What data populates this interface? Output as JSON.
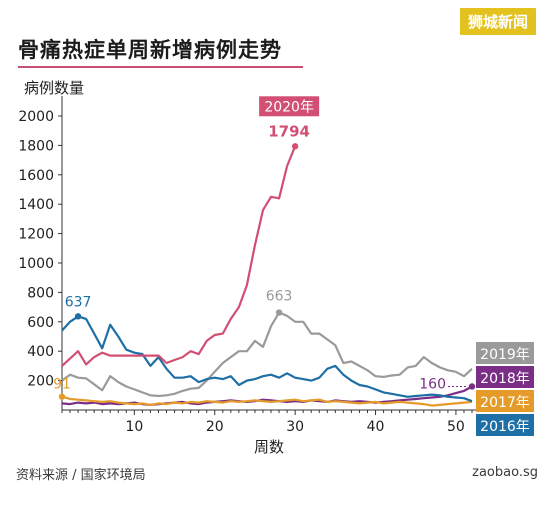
{
  "header": {
    "logo_text": "狮城新闻",
    "title": "骨痛热症单周新增病例走势"
  },
  "footer": {
    "source": "资料来源 / 国家环境局",
    "site": "zaobao.sg"
  },
  "chart_data": {
    "type": "line",
    "xlabel": "周数",
    "ylabel": "病例数量",
    "xlim": [
      1,
      52
    ],
    "ylim": [
      0,
      2000
    ],
    "x_ticks": [
      10,
      20,
      30,
      40,
      50
    ],
    "y_ticks": [
      200,
      400,
      600,
      800,
      1000,
      1200,
      1400,
      1600,
      1800,
      2000
    ],
    "grid": false,
    "legend_position": "right",
    "series": [
      {
        "name": "2019年",
        "color": "#9a9a9a",
        "x": [
          1,
          2,
          3,
          4,
          5,
          6,
          7,
          8,
          9,
          10,
          11,
          12,
          13,
          14,
          15,
          16,
          17,
          18,
          19,
          20,
          21,
          22,
          23,
          24,
          25,
          26,
          27,
          28,
          29,
          30,
          31,
          32,
          33,
          34,
          35,
          36,
          37,
          38,
          39,
          40,
          41,
          42,
          43,
          44,
          45,
          46,
          47,
          48,
          49,
          50,
          51,
          52
        ],
        "y": [
          200,
          240,
          220,
          215,
          175,
          135,
          230,
          190,
          160,
          140,
          120,
          100,
          95,
          100,
          110,
          130,
          145,
          150,
          200,
          260,
          320,
          360,
          400,
          400,
          470,
          430,
          570,
          663,
          640,
          600,
          600,
          520,
          520,
          480,
          440,
          320,
          330,
          300,
          270,
          230,
          225,
          235,
          240,
          290,
          300,
          360,
          320,
          290,
          270,
          260,
          230,
          280
        ],
        "annotation": {
          "x": 28,
          "y": 663,
          "label": "663"
        }
      },
      {
        "name": "2018年",
        "color": "#7a2e86",
        "x": [
          1,
          2,
          3,
          4,
          5,
          6,
          7,
          8,
          9,
          10,
          11,
          12,
          13,
          14,
          15,
          16,
          17,
          18,
          19,
          20,
          21,
          22,
          23,
          24,
          25,
          26,
          27,
          28,
          29,
          30,
          31,
          32,
          33,
          34,
          35,
          36,
          37,
          38,
          39,
          40,
          41,
          42,
          43,
          44,
          45,
          46,
          47,
          48,
          49,
          50,
          51,
          52
        ],
        "y": [
          45,
          40,
          50,
          45,
          50,
          40,
          45,
          40,
          45,
          50,
          40,
          35,
          40,
          45,
          50,
          55,
          45,
          40,
          50,
          55,
          60,
          65,
          60,
          55,
          60,
          70,
          65,
          60,
          55,
          60,
          55,
          65,
          60,
          55,
          65,
          60,
          55,
          60,
          55,
          50,
          55,
          60,
          65,
          70,
          75,
          80,
          85,
          90,
          100,
          115,
          130,
          160
        ],
        "annotation": {
          "x": 52,
          "y": 160,
          "label": "160"
        }
      },
      {
        "name": "2017年",
        "color": "#e59b2a",
        "x": [
          1,
          2,
          3,
          4,
          5,
          6,
          7,
          8,
          9,
          10,
          11,
          12,
          13,
          14,
          15,
          16,
          17,
          18,
          19,
          20,
          21,
          22,
          23,
          24,
          25,
          26,
          27,
          28,
          29,
          30,
          31,
          32,
          33,
          34,
          35,
          36,
          37,
          38,
          39,
          40,
          41,
          42,
          43,
          44,
          45,
          46,
          47,
          48,
          49,
          50,
          51,
          52
        ],
        "y": [
          91,
          75,
          70,
          65,
          60,
          55,
          60,
          50,
          45,
          40,
          45,
          35,
          45,
          40,
          50,
          45,
          55,
          50,
          60,
          55,
          50,
          60,
          55,
          60,
          65,
          60,
          55,
          60,
          65,
          70,
          60,
          65,
          70,
          55,
          60,
          55,
          50,
          45,
          50,
          55,
          45,
          50,
          55,
          50,
          45,
          40,
          30,
          35,
          40,
          45,
          50,
          55
        ],
        "annotation": {
          "x": 1,
          "y": 91,
          "label": "91"
        }
      },
      {
        "name": "2016年",
        "color": "#1e6fa5",
        "x": [
          1,
          2,
          3,
          4,
          5,
          6,
          7,
          8,
          9,
          10,
          11,
          12,
          13,
          14,
          15,
          16,
          17,
          18,
          19,
          20,
          21,
          22,
          23,
          24,
          25,
          26,
          27,
          28,
          29,
          30,
          31,
          32,
          33,
          34,
          35,
          36,
          37,
          38,
          39,
          40,
          41,
          42,
          43,
          44,
          45,
          46,
          47,
          48,
          49,
          50,
          51,
          52
        ],
        "y": [
          540,
          600,
          637,
          620,
          520,
          420,
          580,
          500,
          410,
          390,
          380,
          300,
          360,
          280,
          220,
          220,
          230,
          190,
          210,
          220,
          210,
          230,
          170,
          200,
          210,
          230,
          240,
          220,
          250,
          220,
          210,
          200,
          220,
          280,
          300,
          240,
          200,
          170,
          160,
          140,
          120,
          110,
          100,
          90,
          95,
          100,
          105,
          100,
          90,
          85,
          80,
          60
        ],
        "annotation": {
          "x": 3,
          "y": 637,
          "label": "637"
        }
      },
      {
        "name": "2020年",
        "color": "#d24f73",
        "x": [
          1,
          2,
          3,
          4,
          5,
          6,
          7,
          8,
          9,
          10,
          11,
          12,
          13,
          14,
          15,
          16,
          17,
          18,
          19,
          20,
          21,
          22,
          23,
          24,
          25,
          26,
          27,
          28,
          29,
          30
        ],
        "y": [
          300,
          350,
          400,
          310,
          360,
          390,
          370,
          370,
          370,
          370,
          370,
          370,
          370,
          320,
          340,
          360,
          400,
          380,
          470,
          510,
          520,
          620,
          700,
          850,
          1120,
          1360,
          1450,
          1440,
          1660,
          1794
        ],
        "annotation": {
          "x": 30,
          "y": 1794,
          "label": "1794"
        }
      }
    ]
  }
}
